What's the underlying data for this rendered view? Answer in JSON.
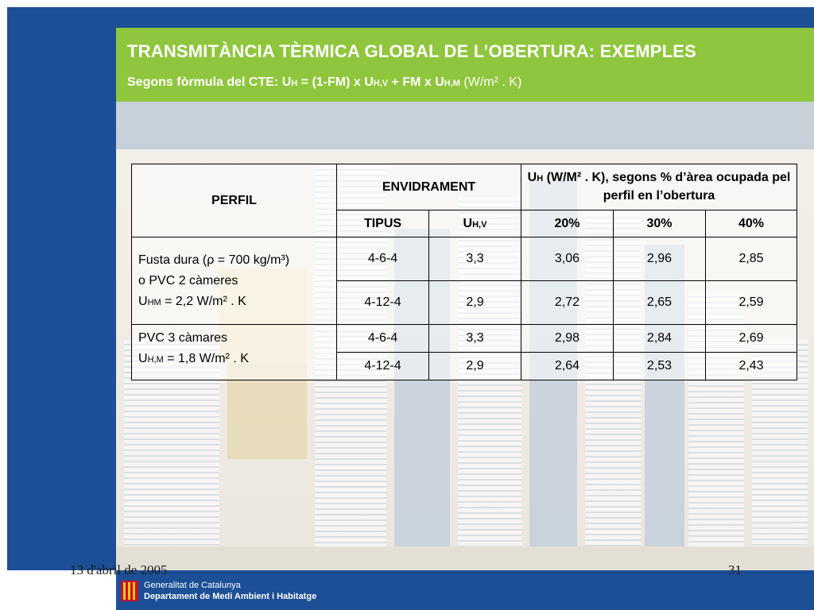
{
  "slide": {
    "title": "TRANSMITÀNCIA TÈRMICA GLOBAL  DE L’OBERTURA: EXEMPLES",
    "subtitle_parts": {
      "prefix": "Segons fòrmula del CTE: U",
      "sub_h": "H",
      "eq1": " = (1-FM) x U",
      "sub_hv": "H,V",
      "eq2": " + FM x U",
      "sub_hm": "H,M",
      "units": " (W/m² . K)"
    },
    "date": "13 d'abril de 2005",
    "page_number": "31"
  },
  "table": {
    "header": {
      "perfil": "PERFIL",
      "envidrament": "ENVIDRAMENT",
      "uh_title_sym": "U",
      "uh_title_sub": "H",
      "uh_title_rest": " (W/M² . K), segons % d’àrea ocupada pel perfil en l’obertura",
      "tipus": "TIPUS",
      "uhv_sym": "U",
      "uhv_sub": "H,V",
      "pct_20": "20%",
      "pct_30": "30%",
      "pct_40": "40%"
    },
    "groups": [
      {
        "profile_line1": "Fusta dura (ρ = 700 kg/m³)",
        "profile_line2": "o PVC 2 càmeres",
        "u_sym": "U",
        "u_sub": "HM",
        "u_value": " = 2,2 W/m² . K",
        "rows": [
          {
            "tipus": "4-6-4",
            "uhv": "3,3",
            "p20": "3,06",
            "p30": "2,96",
            "p40": "2,85"
          },
          {
            "tipus": "4-12-4",
            "uhv": "2,9",
            "p20": "2,72",
            "p30": "2,65",
            "p40": "2,59"
          }
        ]
      },
      {
        "profile_line1": "PVC 3 càmares",
        "u_sym": "U",
        "u_sub": "H,M",
        "u_value": " = 1,8 W/m² . K",
        "rows": [
          {
            "tipus": "4-6-4",
            "uhv": "3,3",
            "p20": "2,98",
            "p30": "2,84",
            "p40": "2,69"
          },
          {
            "tipus": "4-12-4",
            "uhv": "2,9",
            "p20": "2,64",
            "p30": "2,53",
            "p40": "2,43"
          }
        ]
      }
    ]
  },
  "footer": {
    "org_line1": "Generalitat de Catalunya",
    "org_line2": "Departament de Medi Ambient i Habitatge"
  },
  "colors": {
    "brand_blue": "#1c4f96",
    "header_green": "#8fc63d",
    "logo_red": "#c8102e",
    "logo_yellow": "#f2c418"
  },
  "icons": {
    "footer_logo": "generalitat-logo-icon"
  }
}
